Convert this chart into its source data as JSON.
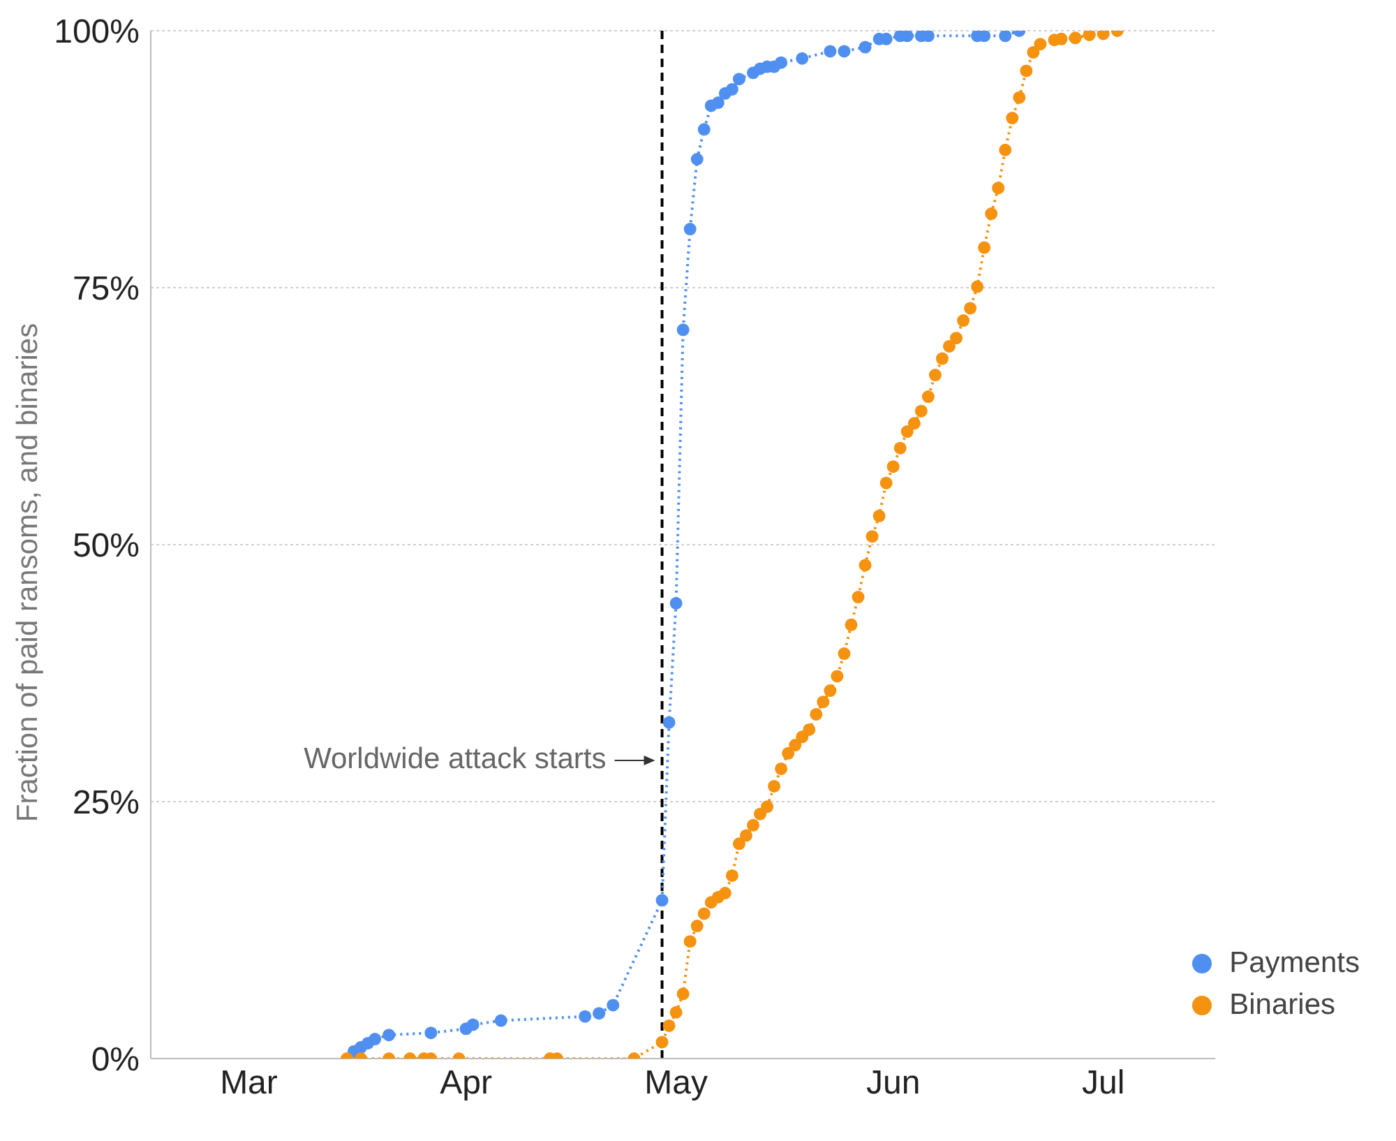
{
  "chart_data": {
    "type": "line",
    "ylabel": "Fraction of paid ransoms, and binaries",
    "xlim": [
      "--02-15",
      "--07-17"
    ],
    "xticks": [
      {
        "value": "--03-01",
        "label": "Mar"
      },
      {
        "value": "--04-01",
        "label": "Apr"
      },
      {
        "value": "--05-01",
        "label": "May"
      },
      {
        "value": "--06-01",
        "label": "Jun"
      },
      {
        "value": "--07-01",
        "label": "Jul"
      }
    ],
    "ylim": [
      0,
      100
    ],
    "yticks": [
      {
        "value": 0,
        "label": "0%"
      },
      {
        "value": 25,
        "label": "25%"
      },
      {
        "value": 50,
        "label": "50%"
      },
      {
        "value": 75,
        "label": "75%"
      },
      {
        "value": 100,
        "label": "100%"
      }
    ],
    "grid": "y",
    "legend": "bottom right",
    "marker": "circle",
    "line_style": "dotted",
    "ref_lines": [
      {
        "axis": "x",
        "value": "--04-29",
        "label": "Worldwide attack starts",
        "color": "#000000",
        "line_style": "dashed"
      }
    ],
    "series": [
      {
        "name": "Payments",
        "color": "#4f8ff0",
        "x": [
          "--03-16",
          "--03-17",
          "--03-18",
          "--03-19",
          "--03-21",
          "--03-27",
          "--04-01",
          "--04-02",
          "--04-06",
          "--04-18",
          "--04-20",
          "--04-22",
          "--04-29",
          "--04-30",
          "--05-01",
          "--05-02",
          "--05-03",
          "--05-04",
          "--05-05",
          "--05-06",
          "--05-07",
          "--05-08",
          "--05-09",
          "--05-10",
          "--05-12",
          "--05-13",
          "--05-14",
          "--05-15",
          "--05-16",
          "--05-19",
          "--05-23",
          "--05-25",
          "--05-28",
          "--05-30",
          "--05-31",
          "--06-02",
          "--06-03",
          "--06-05",
          "--06-06",
          "--06-13",
          "--06-14",
          "--06-17",
          "--06-19"
        ],
        "values": [
          0.7,
          1.1,
          1.5,
          1.9,
          2.3,
          2.5,
          2.9,
          3.3,
          3.7,
          4.1,
          4.4,
          5.2,
          15.4,
          32.7,
          44.3,
          70.9,
          80.7,
          87.5,
          90.4,
          92.7,
          93.0,
          93.9,
          94.3,
          95.3,
          95.9,
          96.3,
          96.5,
          96.5,
          96.9,
          97.3,
          98.0,
          98.0,
          98.4,
          99.2,
          99.2,
          99.5,
          99.5,
          99.5,
          99.5,
          99.5,
          99.5,
          99.5,
          100
        ]
      },
      {
        "name": "Binaries",
        "color": "#f59210",
        "x": [
          "--03-15",
          "--03-17",
          "--03-21",
          "--03-24",
          "--03-26",
          "--03-27",
          "--03-31",
          "--04-13",
          "--04-14",
          "--04-25",
          "--04-29",
          "--04-30",
          "--05-01",
          "--05-02",
          "--05-03",
          "--05-04",
          "--05-05",
          "--05-06",
          "--05-07",
          "--05-08",
          "--05-09",
          "--05-10",
          "--05-11",
          "--05-12",
          "--05-13",
          "--05-14",
          "--05-15",
          "--05-16",
          "--05-17",
          "--05-18",
          "--05-19",
          "--05-20",
          "--05-21",
          "--05-22",
          "--05-23",
          "--05-24",
          "--05-25",
          "--05-26",
          "--05-27",
          "--05-28",
          "--05-29",
          "--05-30",
          "--05-31",
          "--06-01",
          "--06-02",
          "--06-03",
          "--06-04",
          "--06-05",
          "--06-06",
          "--06-07",
          "--06-08",
          "--06-09",
          "--06-10",
          "--06-11",
          "--06-12",
          "--06-13",
          "--06-14",
          "--06-15",
          "--06-16",
          "--06-17",
          "--06-18",
          "--06-19",
          "--06-20",
          "--06-21",
          "--06-22",
          "--06-24",
          "--06-25",
          "--06-27",
          "--06-29",
          "--07-01",
          "--07-03"
        ],
        "values": [
          0,
          0,
          0,
          0,
          0,
          0,
          0,
          0,
          0,
          0,
          1.6,
          3.2,
          4.5,
          6.3,
          11.4,
          12.9,
          14.1,
          15.2,
          15.7,
          16.1,
          17.8,
          20.9,
          21.7,
          22.7,
          23.8,
          24.5,
          26.5,
          28.2,
          29.7,
          30.5,
          31.3,
          32.0,
          33.5,
          34.7,
          35.8,
          37.2,
          39.4,
          42.2,
          44.9,
          48.0,
          50.8,
          52.8,
          56.0,
          57.6,
          59.4,
          61.0,
          61.8,
          63.0,
          64.4,
          66.5,
          68.1,
          69.3,
          70.1,
          71.8,
          73.0,
          75.1,
          78.9,
          82.2,
          84.7,
          88.4,
          91.5,
          93.5,
          96.1,
          97.9,
          98.7,
          99.1,
          99.2,
          99.3,
          99.6,
          99.7,
          100
        ]
      }
    ]
  }
}
